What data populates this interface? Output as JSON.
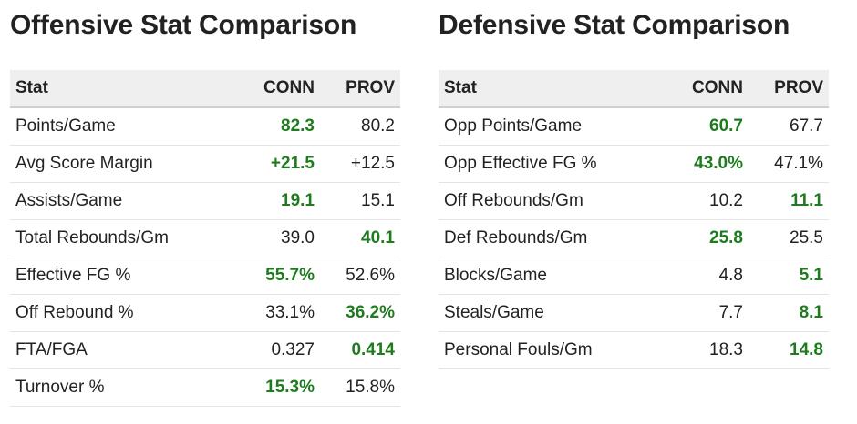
{
  "colors": {
    "winner": "#1e7b1e",
    "header_bg": "#efefef"
  },
  "offense": {
    "title": "Offensive Stat Comparison",
    "headers": {
      "stat": "Stat",
      "team_a": "CONN",
      "team_b": "PROV"
    },
    "rows": [
      {
        "stat": "Points/Game",
        "conn": "82.3",
        "prov": "80.2",
        "winner": "conn"
      },
      {
        "stat": "Avg Score Margin",
        "conn": "+21.5",
        "prov": "+12.5",
        "winner": "conn"
      },
      {
        "stat": "Assists/Game",
        "conn": "19.1",
        "prov": "15.1",
        "winner": "conn"
      },
      {
        "stat": "Total Rebounds/Gm",
        "conn": "39.0",
        "prov": "40.1",
        "winner": "prov"
      },
      {
        "stat": "Effective FG %",
        "conn": "55.7%",
        "prov": "52.6%",
        "winner": "conn"
      },
      {
        "stat": "Off Rebound %",
        "conn": "33.1%",
        "prov": "36.2%",
        "winner": "prov"
      },
      {
        "stat": "FTA/FGA",
        "conn": "0.327",
        "prov": "0.414",
        "winner": "prov"
      },
      {
        "stat": "Turnover %",
        "conn": "15.3%",
        "prov": "15.8%",
        "winner": "conn"
      }
    ]
  },
  "defense": {
    "title": "Defensive Stat Comparison",
    "headers": {
      "stat": "Stat",
      "team_a": "CONN",
      "team_b": "PROV"
    },
    "rows": [
      {
        "stat": "Opp Points/Game",
        "conn": "60.7",
        "prov": "67.7",
        "winner": "conn"
      },
      {
        "stat": "Opp Effective FG %",
        "conn": "43.0%",
        "prov": "47.1%",
        "winner": "conn"
      },
      {
        "stat": "Off Rebounds/Gm",
        "conn": "10.2",
        "prov": "11.1",
        "winner": "prov"
      },
      {
        "stat": "Def Rebounds/Gm",
        "conn": "25.8",
        "prov": "25.5",
        "winner": "conn"
      },
      {
        "stat": "Blocks/Game",
        "conn": "4.8",
        "prov": "5.1",
        "winner": "prov"
      },
      {
        "stat": "Steals/Game",
        "conn": "7.7",
        "prov": "8.1",
        "winner": "prov"
      },
      {
        "stat": "Personal Fouls/Gm",
        "conn": "18.3",
        "prov": "14.8",
        "winner": "prov"
      }
    ]
  }
}
